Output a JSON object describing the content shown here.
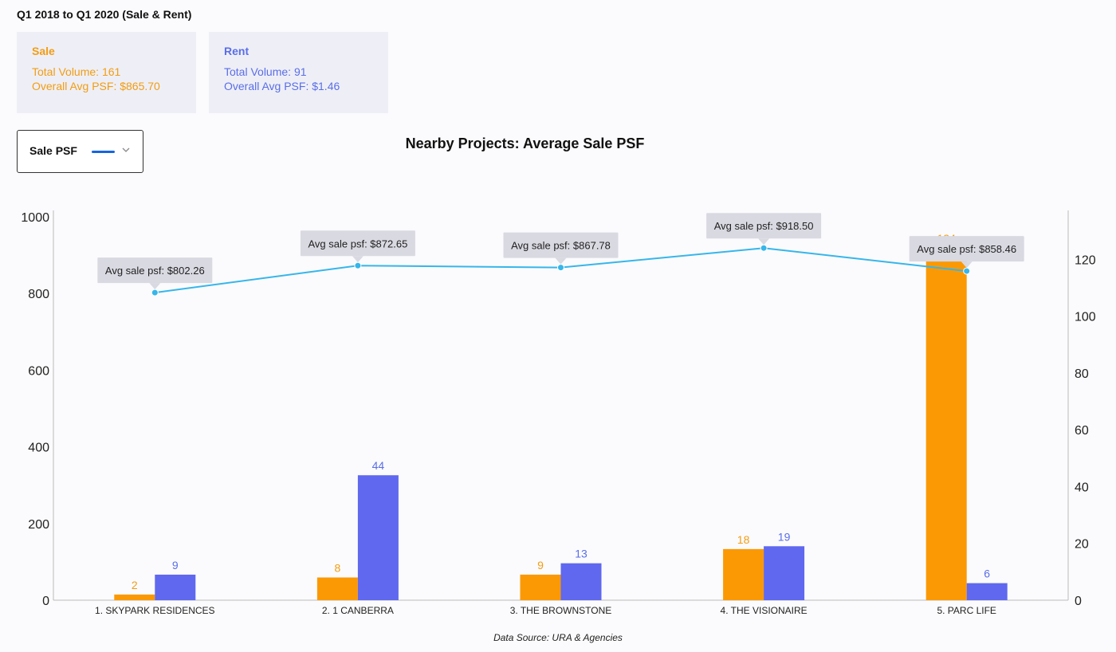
{
  "header": {
    "period_title": "Q1 2018 to Q1 2020 (Sale & Rent)"
  },
  "summary": {
    "sale": {
      "title": "Sale",
      "volume": "Total Volume: 161",
      "avg": "Overall Avg PSF: $865.70",
      "color": "#f39c12"
    },
    "rent": {
      "title": "Rent",
      "volume": "Total Volume: 91",
      "avg": "Overall Avg PSF: $1.46",
      "color": "#5a6ee8"
    }
  },
  "metric_selector": {
    "label": "Sale PSF",
    "swatch_color": "#1565e0",
    "icon": "chevron-down-icon"
  },
  "footer": {
    "source": "Data Source: URA & Agencies"
  },
  "chart_data": {
    "type": "bar",
    "title": "Nearby Projects: Average Sale PSF",
    "categories": [
      "1. SKYPARK RESIDENCES",
      "2. 1 CANBERRA",
      "3. THE BROWNSTONE",
      "4. THE VISIONAIRE",
      "5. PARC LIFE"
    ],
    "left_axis": {
      "ylim": [
        0,
        1000
      ],
      "ticks": [
        0,
        200,
        400,
        600,
        800,
        1000
      ]
    },
    "right_axis": {
      "ylim": [
        0,
        135
      ],
      "ticks": [
        0,
        20,
        40,
        60,
        80,
        100,
        120
      ]
    },
    "bar_series": [
      {
        "values": [
          2,
          8,
          9,
          18,
          124
        ],
        "labels": [
          "2",
          "8",
          "9",
          "18",
          "124"
        ],
        "color": "#fb9904",
        "label_color": "#f39c12"
      },
      {
        "values": [
          9,
          44,
          13,
          19,
          6
        ],
        "labels": [
          "9",
          "44",
          "13",
          "19",
          "6"
        ],
        "color": "#5f68ee",
        "label_color": "#5a6ee8"
      }
    ],
    "line_series": {
      "values": [
        802.26,
        872.65,
        867.78,
        918.5,
        858.46
      ],
      "tooltips": [
        "Avg sale psf: $802.26",
        "Avg sale psf: $872.65",
        "Avg sale psf: $867.78",
        "Avg sale psf: $918.50",
        "Avg sale psf: $858.46"
      ],
      "color": "#36b6ea"
    },
    "grid": false
  }
}
